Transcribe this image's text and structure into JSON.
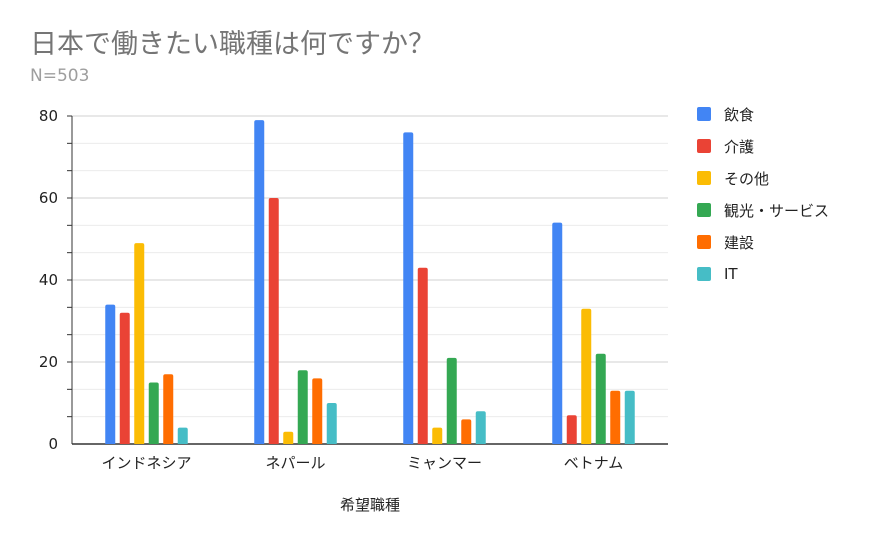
{
  "chart_data": {
    "type": "bar",
    "title": "日本で働きたい職種は何ですか？",
    "subtitle": "N=503",
    "xlabel": "希望職種",
    "ylabel": "",
    "ylim": [
      0,
      80
    ],
    "yticks": [
      0,
      20,
      40,
      60,
      80
    ],
    "grid": true,
    "legend_position": "right",
    "categories": [
      "インドネシア",
      "ネパール",
      "ミャンマー",
      "ベトナム"
    ],
    "series": [
      {
        "name": "飲食",
        "color": "#4285f4",
        "values": [
          34,
          79,
          76,
          54
        ]
      },
      {
        "name": "介護",
        "color": "#ea4335",
        "values": [
          32,
          60,
          43,
          7
        ]
      },
      {
        "name": "その他",
        "color": "#fbbc04",
        "values": [
          49,
          3,
          4,
          33
        ]
      },
      {
        "name": "観光・サービス",
        "color": "#34a853",
        "values": [
          15,
          18,
          21,
          22
        ]
      },
      {
        "name": "建設",
        "color": "#ff6d01",
        "values": [
          17,
          16,
          6,
          13
        ]
      },
      {
        "name": "IT",
        "color": "#46bdc6",
        "values": [
          4,
          10,
          8,
          13
        ]
      }
    ]
  }
}
